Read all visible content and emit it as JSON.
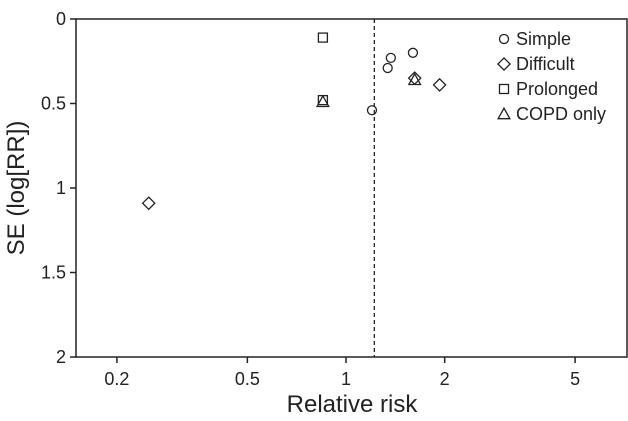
{
  "chart_data": {
    "type": "scatter",
    "title": "",
    "xlabel": "Relative risk",
    "ylabel": "SE (log[RR])",
    "x_scale": "log",
    "xlim": [
      0.15,
      7.2
    ],
    "ylim": [
      0,
      2
    ],
    "y_inverted": true,
    "x_ticks": [
      0.2,
      0.5,
      1,
      2,
      5
    ],
    "x_tick_labels": [
      "0.2",
      "0.5",
      "1",
      "2",
      "5"
    ],
    "y_ticks": [
      0,
      0.5,
      1,
      1.5,
      2
    ],
    "y_tick_labels": [
      "0",
      "0.5",
      "1",
      "1.5",
      "2"
    ],
    "reference_line_x": 1.22,
    "grid": false,
    "legend_position": "top-right",
    "series": [
      {
        "name": "Simple",
        "marker": "circle",
        "points": [
          {
            "x": 1.6,
            "y": 0.2
          },
          {
            "x": 1.37,
            "y": 0.23
          },
          {
            "x": 1.34,
            "y": 0.29
          },
          {
            "x": 1.2,
            "y": 0.54
          }
        ]
      },
      {
        "name": "Difficult",
        "marker": "diamond",
        "points": [
          {
            "x": 1.62,
            "y": 0.35
          },
          {
            "x": 1.93,
            "y": 0.39
          },
          {
            "x": 0.25,
            "y": 1.09
          }
        ]
      },
      {
        "name": "Prolonged",
        "marker": "square",
        "points": [
          {
            "x": 0.85,
            "y": 0.11
          },
          {
            "x": 0.85,
            "y": 0.48
          }
        ]
      },
      {
        "name": "COPD only",
        "marker": "triangle",
        "points": [
          {
            "x": 1.62,
            "y": 0.36
          },
          {
            "x": 0.85,
            "y": 0.49
          }
        ]
      }
    ]
  }
}
